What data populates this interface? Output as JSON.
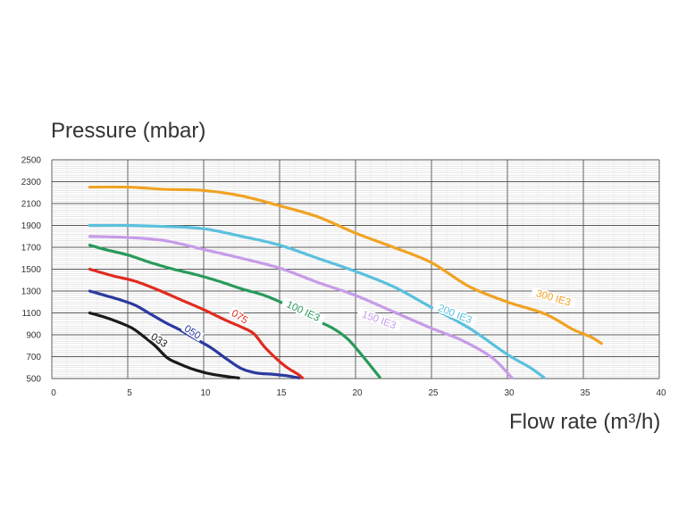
{
  "chart_data": {
    "type": "line",
    "ylabel": "Pressure (mbar)",
    "xlabel": "Flow rate (m³/h)",
    "xlim": [
      0,
      40
    ],
    "ylim": [
      500,
      2500
    ],
    "x_ticks": [
      0,
      5,
      10,
      15,
      20,
      25,
      30,
      35,
      40
    ],
    "y_ticks": [
      500,
      700,
      900,
      1100,
      1300,
      1500,
      1700,
      1900,
      2100,
      2300,
      2500
    ],
    "grid": true,
    "series": [
      {
        "name": "033",
        "color": "#1a1a1a",
        "points": [
          [
            2.5,
            1100
          ],
          [
            3.5,
            1060
          ],
          [
            4.5,
            1010
          ],
          [
            5.3,
            960
          ],
          [
            6,
            890
          ],
          [
            6.8,
            800
          ],
          [
            7.6,
            690
          ],
          [
            8.3,
            640
          ],
          [
            9.2,
            590
          ],
          [
            10.2,
            550
          ],
          [
            11.2,
            525
          ],
          [
            12.3,
            505
          ]
        ]
      },
      {
        "name": "050",
        "color": "#2b3a9e",
        "points": [
          [
            2.5,
            1300
          ],
          [
            3.5,
            1260
          ],
          [
            4.5,
            1220
          ],
          [
            5.5,
            1170
          ],
          [
            6.5,
            1090
          ],
          [
            7.5,
            1010
          ],
          [
            8.5,
            940
          ],
          [
            9.5,
            860
          ],
          [
            10.5,
            780
          ],
          [
            11.5,
            680
          ],
          [
            12.5,
            590
          ],
          [
            13.5,
            550
          ],
          [
            14.5,
            540
          ],
          [
            15.5,
            525
          ],
          [
            16.3,
            505
          ]
        ]
      },
      {
        "name": "075",
        "color": "#e02b20",
        "points": [
          [
            2.5,
            1500
          ],
          [
            4,
            1440
          ],
          [
            5.5,
            1390
          ],
          [
            7,
            1310
          ],
          [
            8.5,
            1220
          ],
          [
            10,
            1130
          ],
          [
            11.5,
            1030
          ],
          [
            12.5,
            970
          ],
          [
            13.3,
            910
          ],
          [
            14,
            790
          ],
          [
            14.8,
            680
          ],
          [
            15.5,
            600
          ],
          [
            16.2,
            540
          ],
          [
            16.5,
            505
          ]
        ]
      },
      {
        "name": "100 IE3",
        "color": "#2a9a5a",
        "points": [
          [
            2.5,
            1720
          ],
          [
            3.5,
            1680
          ],
          [
            5,
            1630
          ],
          [
            6.5,
            1560
          ],
          [
            8,
            1500
          ],
          [
            9.5,
            1450
          ],
          [
            11,
            1390
          ],
          [
            12.5,
            1320
          ],
          [
            14,
            1260
          ],
          [
            15.5,
            1170
          ],
          [
            17,
            1060
          ],
          [
            18.5,
            960
          ],
          [
            19.5,
            860
          ],
          [
            20.5,
            700
          ],
          [
            21.6,
            510
          ]
        ]
      },
      {
        "name": "150 IE3",
        "color": "#c79be8",
        "points": [
          [
            2.5,
            1800
          ],
          [
            5,
            1790
          ],
          [
            7.5,
            1760
          ],
          [
            10,
            1680
          ],
          [
            12.5,
            1600
          ],
          [
            15,
            1510
          ],
          [
            17.5,
            1380
          ],
          [
            20,
            1260
          ],
          [
            22.5,
            1110
          ],
          [
            25,
            960
          ],
          [
            27,
            850
          ],
          [
            29,
            690
          ],
          [
            30.3,
            505
          ]
        ]
      },
      {
        "name": "200 IE3",
        "color": "#5bc0de",
        "points": [
          [
            2.5,
            1900
          ],
          [
            5,
            1900
          ],
          [
            7.5,
            1890
          ],
          [
            10,
            1870
          ],
          [
            12.5,
            1800
          ],
          [
            15,
            1720
          ],
          [
            17.5,
            1600
          ],
          [
            20,
            1480
          ],
          [
            22.5,
            1340
          ],
          [
            25,
            1150
          ],
          [
            27.5,
            960
          ],
          [
            30,
            720
          ],
          [
            31.5,
            600
          ],
          [
            32.4,
            510
          ]
        ]
      },
      {
        "name": "300 IE3",
        "color": "#f0a322",
        "points": [
          [
            2.5,
            2250
          ],
          [
            5,
            2250
          ],
          [
            7.5,
            2230
          ],
          [
            10,
            2220
          ],
          [
            12.5,
            2170
          ],
          [
            15,
            2080
          ],
          [
            17.5,
            1980
          ],
          [
            20,
            1830
          ],
          [
            22.5,
            1700
          ],
          [
            25,
            1560
          ],
          [
            27.5,
            1340
          ],
          [
            30,
            1200
          ],
          [
            32.5,
            1090
          ],
          [
            34.3,
            950
          ],
          [
            35.5,
            880
          ],
          [
            36.2,
            820
          ]
        ]
      }
    ],
    "annotations": [
      {
        "series": "033",
        "text": "033",
        "x": 7.0,
        "y": 835,
        "angle": 33
      },
      {
        "series": "050",
        "text": "050",
        "x": 9.2,
        "y": 910,
        "angle": 33
      },
      {
        "series": "075",
        "text": "075",
        "x": 12.3,
        "y": 1050,
        "angle": 33
      },
      {
        "series": "100 IE3",
        "text": "100 IE3",
        "x": 16.5,
        "y": 1100,
        "angle": 25
      },
      {
        "series": "150 IE3",
        "text": "150 IE3",
        "x": 21.5,
        "y": 1020,
        "angle": 20
      },
      {
        "series": "200 IE3",
        "text": "200 IE3",
        "x": 26.5,
        "y": 1075,
        "angle": 22
      },
      {
        "series": "300 IE3",
        "text": "300 IE3",
        "x": 33.0,
        "y": 1220,
        "angle": 16
      }
    ]
  }
}
